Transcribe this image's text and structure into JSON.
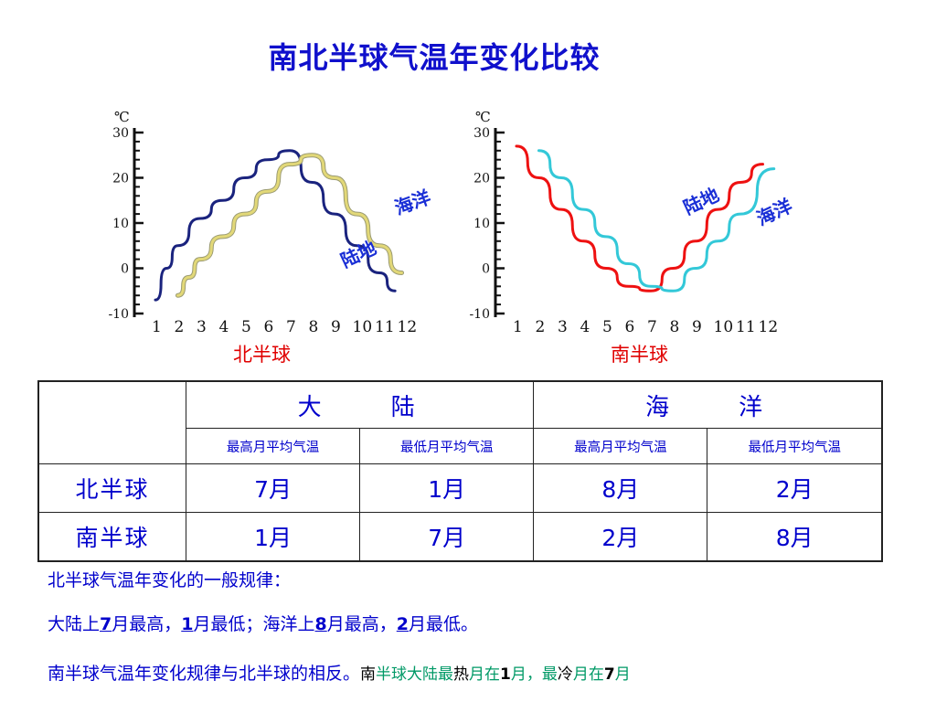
{
  "title": "南北半球气温年变化比较",
  "chart_data": [
    {
      "type": "line",
      "caption": "北半球",
      "unit": "℃",
      "ylim": [
        -10,
        30
      ],
      "yticks": [
        "30",
        "20",
        "10",
        "0",
        "-10"
      ],
      "x_ticks": [
        "1",
        "2",
        "3",
        "4",
        "5",
        "6",
        "7",
        "8",
        "9",
        "10",
        "11",
        "12"
      ],
      "series": [
        {
          "name": "陆地",
          "color": "#1a237e",
          "x": [
            1,
            1.5,
            2,
            3,
            4,
            5,
            6,
            7,
            8,
            9,
            10,
            11,
            11.7
          ],
          "y": [
            -7,
            0,
            5,
            11,
            15,
            20,
            24,
            26,
            19,
            12,
            5,
            -1,
            -5
          ]
        },
        {
          "name": "海洋",
          "color": "#e2d878",
          "x": [
            2,
            2.5,
            3,
            4,
            5,
            6,
            7,
            8,
            9,
            10,
            11,
            12
          ],
          "y": [
            -6,
            -2,
            2,
            7,
            12,
            17,
            23,
            25,
            20,
            12,
            5,
            -1
          ]
        }
      ],
      "labels": [
        {
          "text": "海洋"
        },
        {
          "text": "陆地"
        }
      ]
    },
    {
      "type": "line",
      "caption": "南半球",
      "unit": "℃",
      "ylim": [
        -10,
        30
      ],
      "yticks": [
        "30",
        "20",
        "10",
        "0",
        "-10"
      ],
      "x_ticks": [
        "1",
        "2",
        "3",
        "4",
        "5",
        "6",
        "7",
        "8",
        "9",
        "10",
        "11",
        "12"
      ],
      "series": [
        {
          "name": "陆地",
          "color": "#ee1111",
          "x": [
            1,
            2,
            3,
            4,
            5,
            6,
            7,
            8,
            9,
            10,
            11,
            12
          ],
          "y": [
            27,
            20,
            13,
            6,
            0,
            -4,
            -5,
            0,
            6,
            13,
            19,
            23
          ]
        },
        {
          "name": "海洋",
          "color": "#33c8d8",
          "x": [
            2,
            3,
            4,
            5,
            6,
            7,
            8,
            9,
            10,
            11,
            12.5
          ],
          "y": [
            26,
            20,
            13,
            7,
            1,
            -4,
            -5,
            0,
            6,
            12,
            22
          ]
        }
      ],
      "labels": [
        {
          "text": "陆地"
        },
        {
          "text": "海洋"
        }
      ]
    }
  ],
  "table": {
    "groups": [
      "大　　陆",
      "海　　洋"
    ],
    "sub_headers": [
      "最高月平均气温",
      "最低月平均气温",
      "最高月平均气温",
      "最低月平均气温"
    ],
    "rows": [
      {
        "label": "北半球",
        "values": [
          "7月",
          "1月",
          "8月",
          "2月"
        ]
      },
      {
        "label": "南半球",
        "values": [
          "1月",
          "7月",
          "2月",
          "8月"
        ]
      }
    ]
  },
  "notes": {
    "line1": "北半球气温年变化的一般规律：",
    "line2": {
      "a": "大陆上",
      "b": "7",
      "c": "月最高，",
      "d": "1",
      "e": "月最低；海洋上",
      "f": "8",
      "g": "月最高，",
      "h": "2",
      "i": "月最低。"
    },
    "line3": "南半球气温年变化规律与北半球的相反。",
    "line3_tail": {
      "a": "南",
      "b": "半球大陆最",
      "c": "热",
      "d": "月在",
      "e": "1",
      "f": "月，最",
      "g": "冷",
      "h": "月在",
      "i": "7",
      "j": "月"
    }
  }
}
